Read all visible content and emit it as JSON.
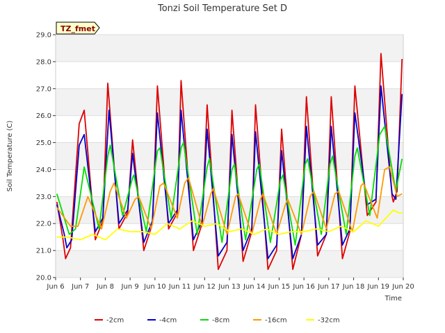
{
  "chart_data": {
    "type": "line",
    "title": "Tonzi Soil Temperature Set D",
    "xlabel": "Time",
    "ylabel": "Soil Temperature (C)",
    "badge": "TZ_fmet",
    "xlim": [
      6,
      20
    ],
    "ylim": [
      20.0,
      29.0
    ],
    "x_ticks": [
      6,
      7,
      8,
      9,
      10,
      11,
      12,
      13,
      14,
      15,
      16,
      17,
      18,
      19,
      20
    ],
    "x_tick_labels": [
      "Jun 6",
      "Jun 7",
      "Jun 8",
      "Jun 9",
      "Jun 10",
      "Jun 11",
      "Jun 12",
      "Jun 13",
      "Jun 14",
      "Jun 15",
      "Jun 16",
      "Jun 17",
      "Jun 18",
      "Jun 19",
      "Jun 20"
    ],
    "y_ticks": [
      20.0,
      21.0,
      22.0,
      23.0,
      24.0,
      25.0,
      26.0,
      27.0,
      28.0,
      29.0
    ],
    "y_tick_labels": [
      "20.0",
      "21.0",
      "22.0",
      "23.0",
      "24.0",
      "25.0",
      "26.0",
      "27.0",
      "28.0",
      "29.0"
    ],
    "grid": "horizontal bands",
    "legend_position": "bottom",
    "series": [
      {
        "name": "-2cm",
        "color": "#dd0000",
        "x": [
          6.05,
          6.3,
          6.4,
          6.6,
          6.95,
          7.15,
          7.6,
          7.9,
          8.1,
          8.55,
          8.9,
          9.1,
          9.55,
          9.9,
          10.1,
          10.55,
          10.9,
          11.05,
          11.55,
          11.9,
          12.1,
          12.55,
          12.9,
          13.1,
          13.55,
          13.9,
          14.05,
          14.55,
          14.9,
          15.1,
          15.55,
          15.9,
          16.1,
          16.55,
          16.9,
          17.1,
          17.55,
          17.85,
          18.05,
          18.55,
          18.9,
          19.1,
          19.55,
          19.6,
          19.75,
          19.95
        ],
        "values": [
          22.8,
          21.4,
          20.7,
          21.1,
          25.7,
          26.2,
          21.4,
          22.1,
          27.2,
          21.8,
          22.4,
          25.1,
          21.0,
          22.0,
          27.1,
          21.8,
          22.4,
          27.3,
          21.0,
          22.0,
          26.4,
          20.3,
          21.0,
          26.2,
          20.6,
          21.7,
          26.4,
          20.3,
          21.0,
          25.5,
          20.3,
          21.6,
          26.7,
          20.8,
          21.6,
          26.7,
          20.7,
          21.7,
          27.1,
          22.3,
          22.8,
          28.3,
          23.0,
          22.8,
          23.2,
          28.1
        ]
      },
      {
        "name": "-4cm",
        "color": "#0000cc",
        "x": [
          6.05,
          6.35,
          6.45,
          6.65,
          6.95,
          7.15,
          7.6,
          7.9,
          8.15,
          8.55,
          8.9,
          9.1,
          9.55,
          9.9,
          10.1,
          10.55,
          10.9,
          11.05,
          11.55,
          11.9,
          12.1,
          12.55,
          12.9,
          13.1,
          13.55,
          13.9,
          14.05,
          14.55,
          14.9,
          15.1,
          15.55,
          15.9,
          16.1,
          16.55,
          16.9,
          17.1,
          17.55,
          17.85,
          18.05,
          18.55,
          18.9,
          19.1,
          19.55,
          19.7,
          19.95
        ],
        "values": [
          22.7,
          21.6,
          21.1,
          21.4,
          24.9,
          25.3,
          21.7,
          22.2,
          26.2,
          22.0,
          22.5,
          24.6,
          21.3,
          22.1,
          26.1,
          22.0,
          22.5,
          26.2,
          21.4,
          22.1,
          25.5,
          20.8,
          21.3,
          25.3,
          21.0,
          21.8,
          25.4,
          20.7,
          21.2,
          24.7,
          20.7,
          21.6,
          25.6,
          21.2,
          21.6,
          25.6,
          21.2,
          21.8,
          26.1,
          22.7,
          22.9,
          27.1,
          23.1,
          22.9,
          26.8
        ]
      },
      {
        "name": "-8cm",
        "color": "#00dd00",
        "x": [
          6.05,
          6.55,
          6.8,
          7.15,
          7.75,
          8.1,
          8.2,
          8.7,
          9.1,
          9.15,
          9.65,
          10.1,
          10.2,
          10.65,
          11.05,
          11.15,
          11.7,
          12.1,
          12.2,
          12.7,
          13.1,
          13.2,
          13.65,
          14.1,
          14.2,
          14.65,
          15.05,
          15.15,
          15.65,
          16.05,
          16.15,
          16.7,
          17.05,
          17.15,
          17.7,
          18.05,
          18.15,
          18.65,
          19.05,
          19.25,
          19.7,
          19.95
        ],
        "values": [
          23.1,
          21.6,
          21.8,
          24.1,
          21.8,
          24.5,
          24.9,
          22.3,
          23.7,
          23.8,
          21.7,
          24.7,
          24.8,
          22.2,
          24.8,
          25.0,
          21.6,
          24.1,
          24.4,
          21.3,
          24.0,
          24.2,
          21.4,
          24.0,
          24.2,
          21.3,
          23.6,
          23.8,
          21.2,
          24.2,
          24.4,
          21.6,
          24.2,
          24.5,
          21.6,
          24.5,
          24.8,
          22.3,
          25.3,
          25.6,
          23.2,
          24.4
        ]
      },
      {
        "name": "-16cm",
        "color": "#ff9900",
        "x": [
          6.05,
          6.6,
          6.9,
          7.3,
          7.85,
          8.2,
          8.35,
          8.85,
          9.2,
          9.35,
          9.85,
          10.2,
          10.35,
          10.9,
          11.2,
          11.35,
          11.9,
          12.25,
          12.35,
          12.9,
          13.25,
          13.35,
          13.9,
          14.25,
          14.35,
          14.9,
          15.25,
          15.35,
          15.9,
          16.25,
          16.4,
          16.9,
          17.25,
          17.4,
          17.95,
          18.3,
          18.4,
          18.95,
          19.25,
          19.45,
          19.75,
          19.95
        ],
        "values": [
          22.6,
          21.9,
          21.9,
          23.0,
          21.8,
          23.2,
          23.5,
          22.2,
          22.9,
          23.0,
          21.8,
          23.4,
          23.5,
          22.2,
          23.5,
          23.7,
          21.9,
          23.1,
          23.3,
          21.6,
          23.0,
          23.1,
          21.6,
          22.9,
          23.1,
          21.6,
          22.7,
          22.9,
          21.6,
          23.0,
          23.2,
          21.8,
          23.1,
          23.2,
          21.7,
          23.4,
          23.5,
          22.2,
          24.0,
          24.1,
          23.0,
          23.1
        ]
      },
      {
        "name": "-32cm",
        "color": "#ffff00",
        "x": [
          6.05,
          6.5,
          7.0,
          7.5,
          8.0,
          8.5,
          9.0,
          9.5,
          10.0,
          10.5,
          11.0,
          11.5,
          12.0,
          12.5,
          13.0,
          13.5,
          14.0,
          14.5,
          15.0,
          15.5,
          16.0,
          16.5,
          17.0,
          17.5,
          18.0,
          18.5,
          19.0,
          19.3,
          19.6,
          19.8,
          19.95
        ],
        "values": [
          21.5,
          21.5,
          21.4,
          21.6,
          21.4,
          21.8,
          21.7,
          21.7,
          21.6,
          22.0,
          21.8,
          22.1,
          21.9,
          22.0,
          21.7,
          21.8,
          21.6,
          21.8,
          21.6,
          21.7,
          21.7,
          21.8,
          21.7,
          21.9,
          21.7,
          22.1,
          21.9,
          22.2,
          22.5,
          22.4,
          22.4
        ]
      }
    ]
  }
}
